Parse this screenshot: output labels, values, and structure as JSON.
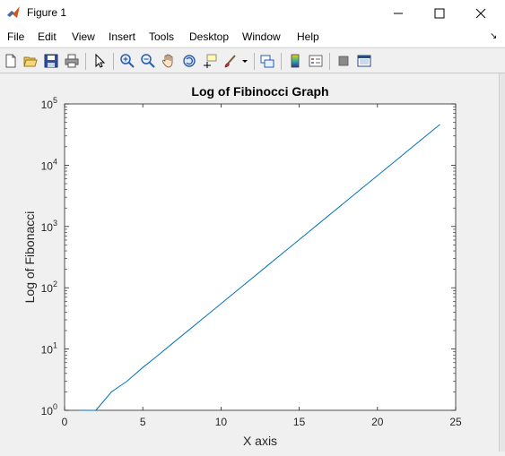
{
  "window": {
    "title": "Figure 1"
  },
  "menu": {
    "items": [
      "File",
      "Edit",
      "View",
      "Insert",
      "Tools",
      "Desktop",
      "Window",
      "Help"
    ]
  },
  "toolbar": {
    "buttons": [
      "new-figure-icon",
      "open-file-icon",
      "save-icon",
      "print-icon",
      "select-pointer-icon",
      "zoom-in-icon",
      "zoom-out-icon",
      "pan-hand-icon",
      "rotate-3d-icon",
      "data-cursor-icon",
      "brush-icon",
      "link-plot-icon",
      "colorbar-icon",
      "legend-icon",
      "hide-plot-tools-icon",
      "show-plot-tools-icon"
    ]
  },
  "chart_data": {
    "type": "line",
    "title": "Log of Fibinocci Graph",
    "xlabel": "X axis",
    "ylabel": "Log of Fibonacci",
    "xlim": [
      0,
      25
    ],
    "ylim": [
      1,
      100000
    ],
    "yscale": "log",
    "xticks": [
      "0",
      "5",
      "10",
      "15",
      "20",
      "25"
    ],
    "yticks": [
      {
        "base": "10",
        "exp": "0"
      },
      {
        "base": "10",
        "exp": "1"
      },
      {
        "base": "10",
        "exp": "2"
      },
      {
        "base": "10",
        "exp": "3"
      },
      {
        "base": "10",
        "exp": "4"
      },
      {
        "base": "10",
        "exp": "5"
      }
    ],
    "grid": false,
    "series": [
      {
        "color": "#0072bd",
        "x": [
          1,
          2,
          3,
          4,
          5,
          6,
          7,
          8,
          9,
          10,
          11,
          12,
          13,
          14,
          15,
          16,
          17,
          18,
          19,
          20,
          21,
          22,
          23,
          24
        ],
        "y": [
          1,
          1,
          2,
          3,
          5,
          8,
          13,
          21,
          34,
          55,
          89,
          144,
          233,
          377,
          610,
          987,
          1597,
          2584,
          4181,
          6765,
          10946,
          17711,
          28657,
          46368
        ]
      }
    ]
  }
}
